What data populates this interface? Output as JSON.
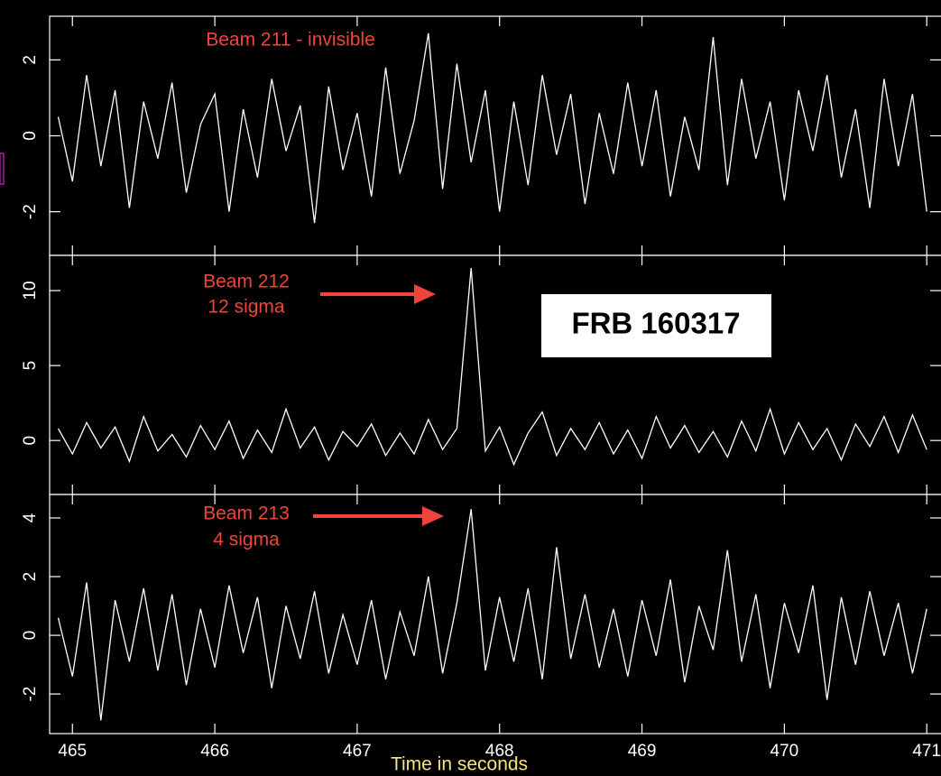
{
  "chart_data": [
    {
      "type": "line",
      "annotations": [
        "Beam 211 - invisible"
      ],
      "x": [
        464.9,
        465,
        465.1,
        465.2,
        465.3,
        465.4,
        465.5,
        465.6,
        465.7,
        465.8,
        465.9,
        466,
        466.1,
        466.2,
        466.3,
        466.4,
        466.5,
        466.6,
        466.7,
        466.8,
        466.9,
        467,
        467.1,
        467.2,
        467.3,
        467.4,
        467.5,
        467.6,
        467.7,
        467.8,
        467.9,
        468,
        468.1,
        468.2,
        468.3,
        468.4,
        468.5,
        468.6,
        468.7,
        468.8,
        468.9,
        469,
        469.1,
        469.2,
        469.3,
        469.4,
        469.5,
        469.6,
        469.7,
        469.8,
        469.9,
        470,
        470.1,
        470.2,
        470.3,
        470.4,
        470.5,
        470.6,
        470.7,
        470.8,
        470.9,
        471
      ],
      "values": [
        0.5,
        -1.2,
        1.6,
        -0.8,
        1.2,
        -1.9,
        0.9,
        -0.6,
        1.4,
        -1.5,
        0.3,
        1.1,
        -2.0,
        0.7,
        -1.1,
        1.5,
        -0.4,
        0.8,
        -2.3,
        1.3,
        -0.9,
        0.6,
        -1.6,
        1.8,
        -1.0,
        0.4,
        2.7,
        -1.4,
        1.9,
        -0.7,
        1.2,
        -2.0,
        0.9,
        -1.3,
        1.6,
        -0.5,
        1.1,
        -1.8,
        0.6,
        -1.0,
        1.4,
        -0.8,
        1.2,
        -1.6,
        0.5,
        -0.9,
        2.6,
        -1.3,
        1.5,
        -0.6,
        0.9,
        -1.7,
        1.2,
        -0.4,
        1.6,
        -1.1,
        0.7,
        -1.9,
        1.5,
        -0.8,
        1.1,
        -2.0
      ],
      "color": "#ffffff",
      "xlim": [
        464.84,
        471.1
      ],
      "xticks": [
        465,
        466,
        467,
        468,
        469,
        470,
        471
      ],
      "ylim": [
        -3.15,
        3.15
      ],
      "yticks": [
        -2,
        0,
        2
      ]
    },
    {
      "type": "line",
      "annotations": [
        "Beam 212",
        "12 sigma",
        "FRB 160317"
      ],
      "x": [
        464.9,
        465,
        465.1,
        465.2,
        465.3,
        465.4,
        465.5,
        465.6,
        465.7,
        465.8,
        465.9,
        466,
        466.1,
        466.2,
        466.3,
        466.4,
        466.5,
        466.6,
        466.7,
        466.8,
        466.9,
        467,
        467.1,
        467.2,
        467.3,
        467.4,
        467.5,
        467.6,
        467.7,
        467.8,
        467.9,
        468,
        468.1,
        468.2,
        468.3,
        468.4,
        468.5,
        468.6,
        468.7,
        468.8,
        468.9,
        469,
        469.1,
        469.2,
        469.3,
        469.4,
        469.5,
        469.6,
        469.7,
        469.8,
        469.9,
        470,
        470.1,
        470.2,
        470.3,
        470.4,
        470.5,
        470.6,
        470.7,
        470.8,
        470.9,
        471
      ],
      "values": [
        0.8,
        -0.9,
        1.2,
        -0.5,
        0.9,
        -1.4,
        1.6,
        -0.7,
        0.4,
        -1.1,
        1.0,
        -0.6,
        1.3,
        -1.2,
        0.7,
        -0.8,
        2.1,
        -0.5,
        0.9,
        -1.3,
        0.6,
        -0.4,
        1.1,
        -1.0,
        0.5,
        -0.9,
        1.4,
        -0.6,
        0.8,
        11.5,
        -0.7,
        0.9,
        -1.6,
        0.5,
        1.9,
        -1.0,
        0.8,
        -0.6,
        1.2,
        -0.9,
        0.7,
        -1.2,
        1.6,
        -0.5,
        1.0,
        -0.8,
        0.6,
        -1.1,
        1.3,
        -0.7,
        2.1,
        -0.9,
        1.2,
        -0.6,
        0.8,
        -1.3,
        1.1,
        -0.4,
        1.6,
        -0.8,
        1.7,
        -0.6
      ],
      "color": "#ffffff",
      "xlim": [
        464.84,
        471.1
      ],
      "xticks": [
        465,
        466,
        467,
        468,
        469,
        470,
        471
      ],
      "ylim": [
        -3.6,
        12.35
      ],
      "yticks": [
        0,
        5,
        10
      ]
    },
    {
      "type": "line",
      "annotations": [
        "Beam 213",
        "4 sigma"
      ],
      "xlabel": "Time in seconds",
      "x": [
        464.9,
        465,
        465.1,
        465.2,
        465.3,
        465.4,
        465.5,
        465.6,
        465.7,
        465.8,
        465.9,
        466,
        466.1,
        466.2,
        466.3,
        466.4,
        466.5,
        466.6,
        466.7,
        466.8,
        466.9,
        467,
        467.1,
        467.2,
        467.3,
        467.4,
        467.5,
        467.6,
        467.7,
        467.8,
        467.9,
        468,
        468.1,
        468.2,
        468.3,
        468.4,
        468.5,
        468.6,
        468.7,
        468.8,
        468.9,
        469,
        469.1,
        469.2,
        469.3,
        469.4,
        469.5,
        469.6,
        469.7,
        469.8,
        469.9,
        470,
        470.1,
        470.2,
        470.3,
        470.4,
        470.5,
        470.6,
        470.7,
        470.8,
        470.9,
        471
      ],
      "values": [
        0.6,
        -1.4,
        1.8,
        -2.9,
        1.2,
        -0.9,
        1.6,
        -1.2,
        1.4,
        -1.7,
        0.9,
        -1.1,
        1.7,
        -0.6,
        1.3,
        -1.8,
        1.0,
        -0.8,
        1.5,
        -1.3,
        0.7,
        -1.0,
        1.2,
        -1.5,
        0.8,
        -0.7,
        2.0,
        -1.3,
        1.1,
        4.3,
        -1.2,
        1.3,
        -0.9,
        1.6,
        -1.5,
        3.0,
        -0.8,
        1.4,
        -1.1,
        0.9,
        -1.4,
        1.2,
        -0.7,
        1.9,
        -1.6,
        1.0,
        -0.5,
        2.9,
        -0.9,
        1.4,
        -1.8,
        1.1,
        -0.6,
        1.7,
        -2.2,
        1.3,
        -1.0,
        1.5,
        -0.7,
        1.1,
        -1.3,
        0.9
      ],
      "color": "#ffffff",
      "xlim": [
        464.84,
        471.1
      ],
      "xticks": [
        465,
        466,
        467,
        468,
        469,
        470,
        471
      ],
      "ylim": [
        -3.35,
        4.8
      ],
      "yticks": [
        -2,
        0,
        2,
        4
      ]
    }
  ]
}
